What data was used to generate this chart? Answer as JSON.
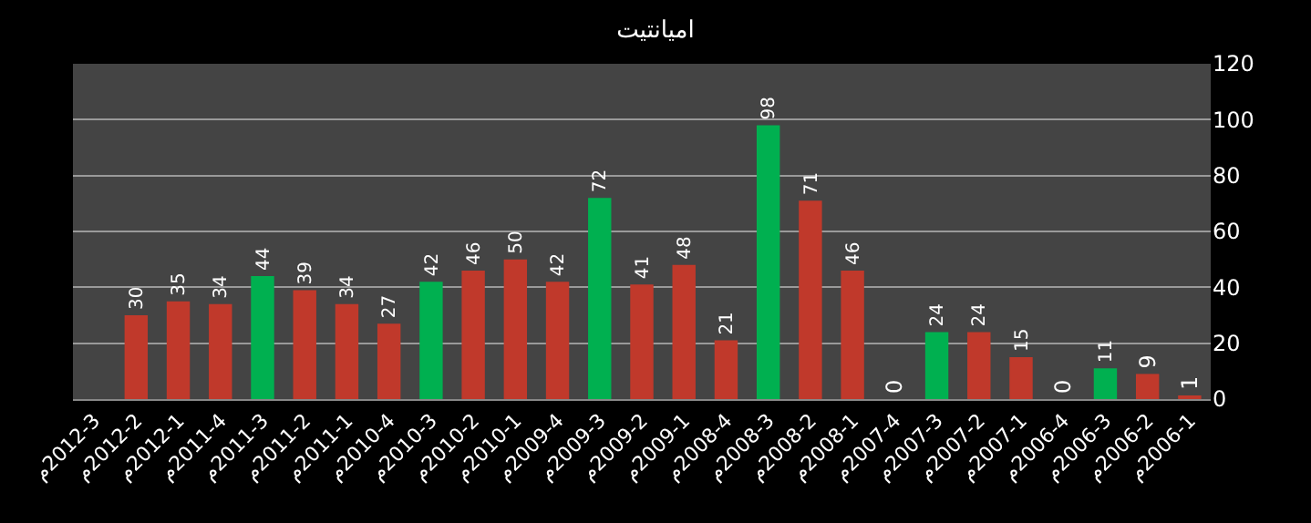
{
  "chart_data": {
    "type": "bar",
    "title": "امیانتیت",
    "categories": [
      "م2012-3",
      "م2012-2",
      "م2012-1",
      "م2011-4",
      "م2011-3",
      "م2011-2",
      "م2011-1",
      "م2010-4",
      "م2010-3",
      "م2010-2",
      "م2010-1",
      "م2009-4",
      "م2009-3",
      "م2009-2",
      "م2009-1",
      "م2008-4",
      "م2008-3",
      "م2008-2",
      "م2008-1",
      "م2007-4",
      "م2007-3",
      "م2007-2",
      "م2007-1",
      "م2006-4",
      "م2006-3",
      "م2006-2",
      "م2006-1"
    ],
    "values": [
      null,
      30,
      35,
      34,
      44,
      39,
      34,
      27,
      42,
      46,
      50,
      42,
      72,
      41,
      48,
      21,
      98,
      71,
      46,
      0,
      24,
      24,
      15,
      0,
      11,
      9,
      1
    ],
    "colors": [
      "#c0392b",
      "#c0392b",
      "#c0392b",
      "#c0392b",
      "#00b050",
      "#c0392b",
      "#c0392b",
      "#c0392b",
      "#00b050",
      "#c0392b",
      "#c0392b",
      "#c0392b",
      "#00b050",
      "#c0392b",
      "#c0392b",
      "#c0392b",
      "#00b050",
      "#c0392b",
      "#c0392b",
      "#c0392b",
      "#00b050",
      "#c0392b",
      "#c0392b",
      "#c0392b",
      "#00b050",
      "#c0392b",
      "#c0392b"
    ],
    "ylim": [
      0,
      120
    ],
    "yticks": [
      0,
      20,
      40,
      60,
      80,
      100,
      120
    ],
    "grid": "y",
    "data_labels": true
  }
}
